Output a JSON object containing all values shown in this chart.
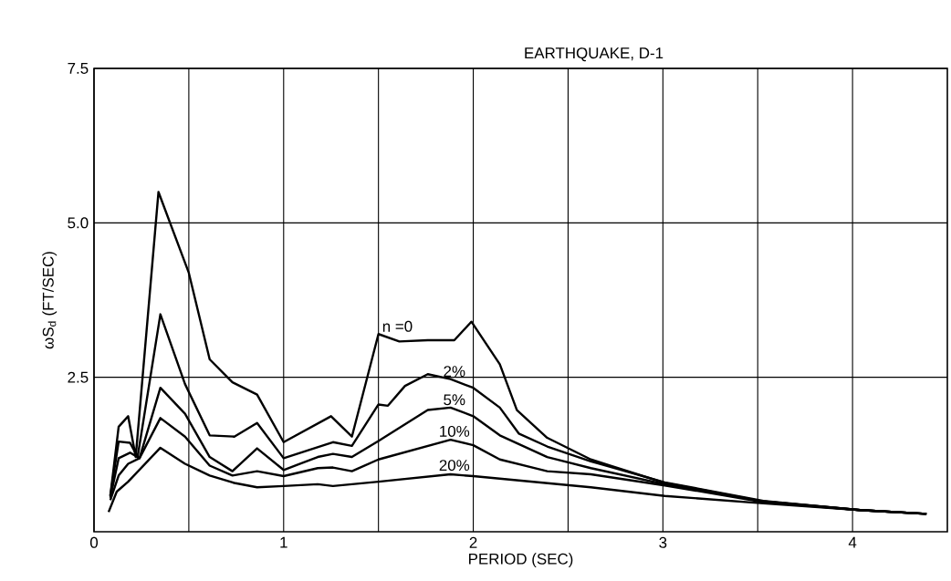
{
  "chart_data": {
    "type": "line",
    "title": "EARTHQUAKE, D-1",
    "xlabel": "PERIOD (SEC)",
    "ylabel": "ωS$_{d}$ (FT/SEC)",
    "xlim": [
      0,
      4.5
    ],
    "ylim": [
      0,
      7.5
    ],
    "xticks": [
      0,
      {
        "value": 0.5,
        "label": null
      },
      1,
      {
        "value": 1.5,
        "label": null
      },
      2,
      {
        "value": 2.5,
        "label": null
      },
      3,
      {
        "value": 3.5,
        "label": null
      },
      4
    ],
    "yticks": [
      {
        "value": 2.5,
        "label": "2.5"
      },
      {
        "value": 5,
        "label": "5.0"
      },
      {
        "value": 7.5,
        "label": "7.5"
      }
    ],
    "grid": true,
    "legend": false,
    "marker": "none",
    "line_style": "solid",
    "series": [
      {
        "name": "n =0",
        "color": "#000000",
        "x": [
          0.086,
          0.13,
          0.18,
          0.22,
          0.34,
          0.5,
          0.61,
          0.73,
          0.86,
          1.0,
          1.25,
          1.36,
          1.5,
          1.61,
          1.76,
          1.9,
          1.99,
          2.14,
          2.23,
          2.39,
          2.62,
          3.01,
          3.53,
          4.04,
          4.39
        ],
        "values": [
          0.58,
          1.7,
          1.87,
          1.21,
          5.5,
          4.19,
          2.79,
          2.42,
          2.22,
          1.45,
          1.87,
          1.54,
          3.2,
          3.08,
          3.1,
          3.1,
          3.4,
          2.71,
          1.97,
          1.52,
          1.17,
          0.79,
          0.49,
          0.35,
          0.29
        ]
      },
      {
        "name": "2%",
        "color": "#000000",
        "x": [
          0.086,
          0.13,
          0.19,
          0.23,
          0.35,
          0.48,
          0.61,
          0.74,
          0.86,
          1.0,
          1.26,
          1.36,
          1.5,
          1.55,
          1.64,
          1.76,
          1.88,
          2.0,
          2.14,
          2.24,
          2.39,
          2.62,
          3.01,
          3.53,
          4.04,
          4.39
        ],
        "values": [
          0.58,
          1.46,
          1.44,
          1.21,
          3.52,
          2.39,
          1.56,
          1.54,
          1.76,
          1.19,
          1.45,
          1.39,
          2.06,
          2.04,
          2.36,
          2.55,
          2.47,
          2.33,
          2.01,
          1.59,
          1.38,
          1.14,
          0.8,
          0.5,
          0.35,
          0.29
        ]
      },
      {
        "name": "5%",
        "color": "#000000",
        "x": [
          0.086,
          0.13,
          0.19,
          0.24,
          0.35,
          0.48,
          0.61,
          0.73,
          0.86,
          1.0,
          1.18,
          1.26,
          1.36,
          1.5,
          1.76,
          1.88,
          2.0,
          2.14,
          2.39,
          2.62,
          3.01,
          3.53,
          4.04,
          4.39
        ],
        "values": [
          0.55,
          1.19,
          1.28,
          1.19,
          2.33,
          1.91,
          1.21,
          0.98,
          1.35,
          1.0,
          1.21,
          1.26,
          1.21,
          1.47,
          1.97,
          2.01,
          1.87,
          1.56,
          1.21,
          1.03,
          0.77,
          0.49,
          0.35,
          0.29
        ]
      },
      {
        "name": "10%",
        "color": "#000000",
        "x": [
          0.086,
          0.13,
          0.18,
          0.24,
          0.35,
          0.48,
          0.61,
          0.73,
          0.86,
          1.0,
          1.18,
          1.26,
          1.36,
          1.5,
          1.88,
          2.0,
          2.14,
          2.39,
          2.62,
          3.01,
          3.53,
          4.04,
          4.39
        ],
        "values": [
          0.51,
          0.91,
          1.1,
          1.19,
          1.84,
          1.54,
          1.07,
          0.91,
          0.98,
          0.9,
          1.03,
          1.04,
          0.98,
          1.17,
          1.49,
          1.4,
          1.17,
          0.98,
          0.93,
          0.75,
          0.48,
          0.35,
          0.29
        ]
      },
      {
        "name": "20%",
        "color": "#000000",
        "x": [
          0.077,
          0.12,
          0.18,
          0.35,
          0.48,
          0.61,
          0.74,
          0.86,
          1.0,
          1.18,
          1.26,
          1.5,
          1.88,
          2.0,
          2.62,
          3.01,
          3.53,
          4.04,
          4.39
        ],
        "values": [
          0.32,
          0.65,
          0.81,
          1.36,
          1.1,
          0.91,
          0.79,
          0.72,
          0.74,
          0.77,
          0.74,
          0.81,
          0.93,
          0.9,
          0.72,
          0.58,
          0.46,
          0.35,
          0.29
        ]
      }
    ]
  }
}
